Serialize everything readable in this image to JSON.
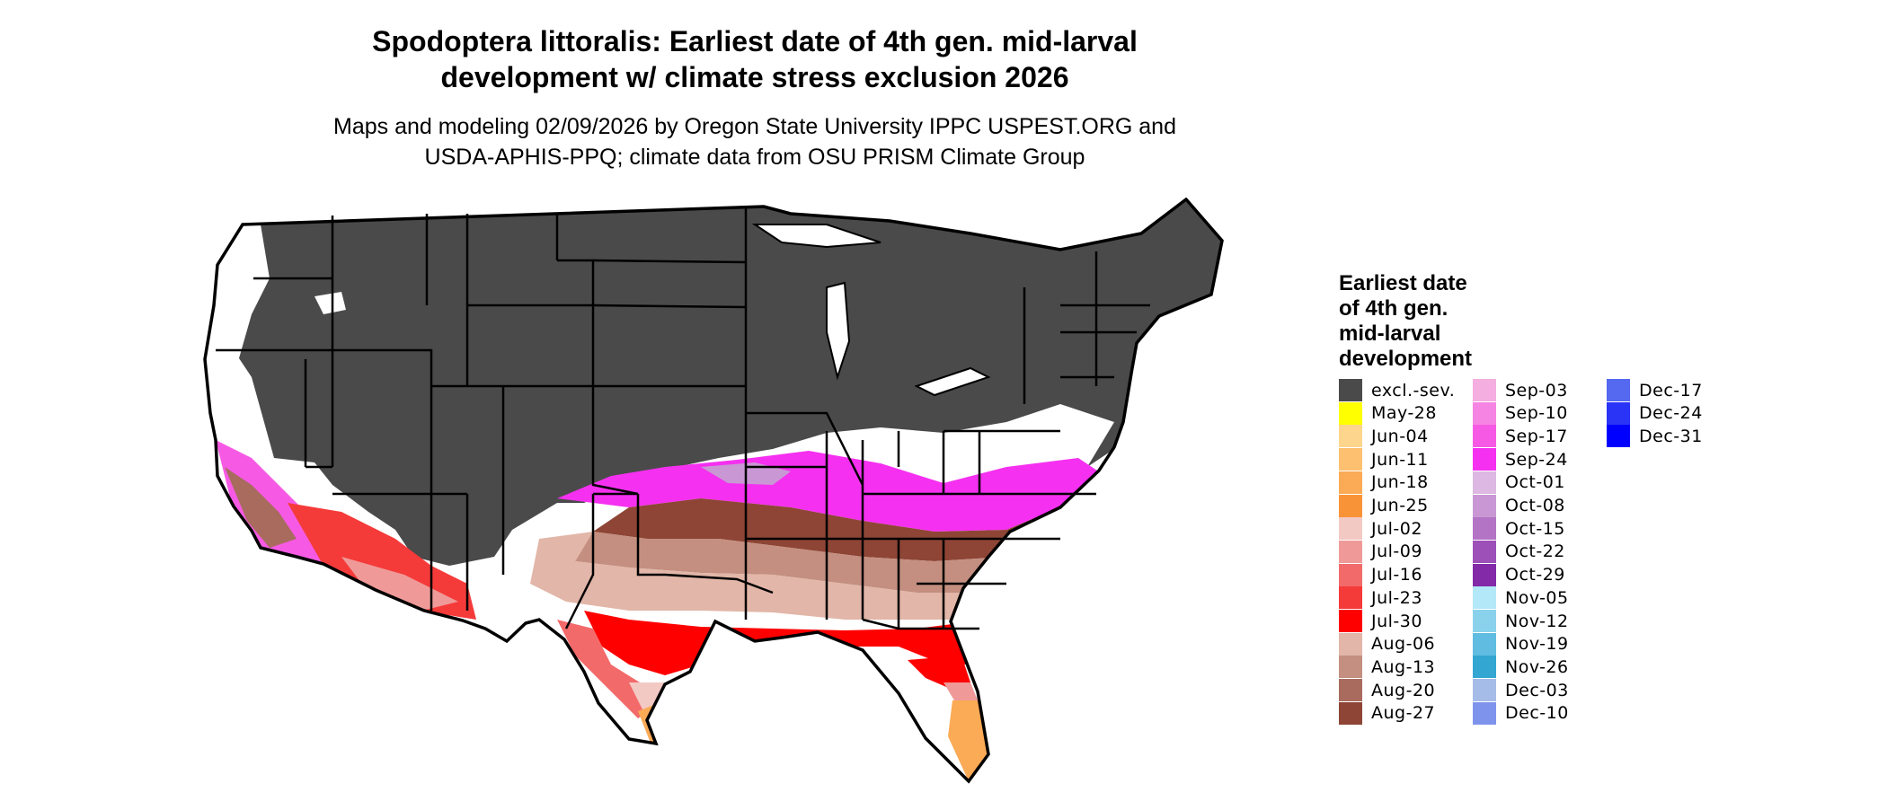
{
  "title": {
    "line1": "Spodoptera littoralis: Earliest date of 4th gen. mid-larval",
    "line2": "development w/ climate stress exclusion 2026"
  },
  "subtitle": {
    "line1": "Maps and modeling 02/09/2026 by Oregon State University IPPC USPEST.ORG and",
    "line2": "USDA-APHIS-PPQ; climate data from OSU PRISM Climate Group"
  },
  "legend": {
    "title_lines": [
      "Earliest date",
      "of 4th gen.",
      "mid-larval",
      "development"
    ],
    "items": [
      {
        "label": "excl.-sev.",
        "color": "#4a4a4a"
      },
      {
        "label": "May-28",
        "color": "#ffff00"
      },
      {
        "label": "Jun-04",
        "color": "#fdd58c"
      },
      {
        "label": "Jun-11",
        "color": "#fcc070"
      },
      {
        "label": "Jun-18",
        "color": "#fbaa55"
      },
      {
        "label": "Jun-25",
        "color": "#f99338"
      },
      {
        "label": "Jul-02",
        "color": "#f3c9c4"
      },
      {
        "label": "Jul-09",
        "color": "#ef9a98"
      },
      {
        "label": "Jul-16",
        "color": "#f36a6a"
      },
      {
        "label": "Jul-23",
        "color": "#f53a3a"
      },
      {
        "label": "Jul-30",
        "color": "#ff0000"
      },
      {
        "label": "Aug-06",
        "color": "#e2b6a8"
      },
      {
        "label": "Aug-13",
        "color": "#c48f80"
      },
      {
        "label": "Aug-20",
        "color": "#a86b5e"
      },
      {
        "label": "Aug-27",
        "color": "#8e4535"
      },
      {
        "label": "Sep-03",
        "color": "#f5aee0"
      },
      {
        "label": "Sep-10",
        "color": "#f684e2"
      },
      {
        "label": "Sep-17",
        "color": "#f65ae4"
      },
      {
        "label": "Sep-24",
        "color": "#f530f0"
      },
      {
        "label": "Oct-01",
        "color": "#dcb8e2"
      },
      {
        "label": "Oct-08",
        "color": "#c998d4"
      },
      {
        "label": "Oct-15",
        "color": "#b474c6"
      },
      {
        "label": "Oct-22",
        "color": "#9d50b8"
      },
      {
        "label": "Oct-29",
        "color": "#822aa8"
      },
      {
        "label": "Nov-05",
        "color": "#b2e8f8"
      },
      {
        "label": "Nov-12",
        "color": "#8ad2ec"
      },
      {
        "label": "Nov-19",
        "color": "#60bce0"
      },
      {
        "label": "Nov-26",
        "color": "#33a6d2"
      },
      {
        "label": "Dec-03",
        "color": "#a6bce8"
      },
      {
        "label": "Dec-10",
        "color": "#7e94ec"
      },
      {
        "label": "Dec-17",
        "color": "#5568f0"
      },
      {
        "label": "Dec-24",
        "color": "#2a34f6"
      },
      {
        "label": "Dec-31",
        "color": "#0000ff"
      }
    ]
  }
}
